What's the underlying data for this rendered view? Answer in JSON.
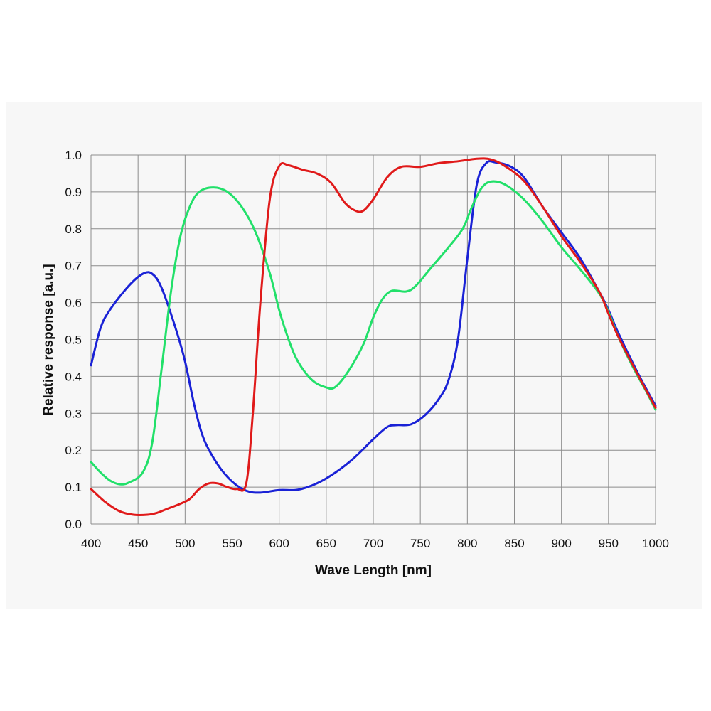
{
  "chart_data": {
    "type": "line",
    "title": "",
    "xlabel": "Wave Length [nm]",
    "ylabel": "Relative response  [a.u.]",
    "xlim": [
      400,
      1000
    ],
    "ylim": [
      0.0,
      1.0
    ],
    "grid": true,
    "legend": "none",
    "xticks": [
      400,
      450,
      500,
      550,
      600,
      650,
      700,
      750,
      800,
      850,
      900,
      950,
      1000
    ],
    "xtick_labels": [
      "400",
      "450",
      "500",
      "550",
      "600",
      "650",
      "700",
      "750",
      "800",
      "850",
      "900",
      "950",
      "1000"
    ],
    "yticks": [
      0.0,
      0.1,
      0.2,
      0.3,
      0.4,
      0.5,
      0.6,
      0.7,
      0.8,
      0.9,
      1.0
    ],
    "ytick_labels": [
      "0.0",
      "0.1",
      "0.2",
      "0.3",
      "0.4",
      "0.5",
      "0.6",
      "0.7",
      "0.8",
      "0.9",
      "1.0"
    ],
    "series": [
      {
        "color": "#1a22d6",
        "points": [
          [
            400,
            0.43
          ],
          [
            410,
            0.53
          ],
          [
            420,
            0.58
          ],
          [
            440,
            0.645
          ],
          [
            455,
            0.678
          ],
          [
            465,
            0.678
          ],
          [
            475,
            0.64
          ],
          [
            490,
            0.53
          ],
          [
            500,
            0.44
          ],
          [
            510,
            0.32
          ],
          [
            520,
            0.23
          ],
          [
            535,
            0.16
          ],
          [
            550,
            0.115
          ],
          [
            565,
            0.09
          ],
          [
            580,
            0.085
          ],
          [
            600,
            0.092
          ],
          [
            620,
            0.093
          ],
          [
            640,
            0.11
          ],
          [
            660,
            0.14
          ],
          [
            680,
            0.18
          ],
          [
            700,
            0.23
          ],
          [
            715,
            0.263
          ],
          [
            725,
            0.268
          ],
          [
            740,
            0.27
          ],
          [
            755,
            0.295
          ],
          [
            770,
            0.34
          ],
          [
            780,
            0.39
          ],
          [
            790,
            0.5
          ],
          [
            800,
            0.72
          ],
          [
            810,
            0.92
          ],
          [
            820,
            0.978
          ],
          [
            830,
            0.98
          ],
          [
            845,
            0.97
          ],
          [
            860,
            0.94
          ],
          [
            880,
            0.86
          ],
          [
            900,
            0.79
          ],
          [
            920,
            0.72
          ],
          [
            940,
            0.63
          ],
          [
            950,
            0.58
          ],
          [
            960,
            0.52
          ],
          [
            980,
            0.415
          ],
          [
            1000,
            0.32
          ]
        ]
      },
      {
        "color": "#22e06a",
        "points": [
          [
            400,
            0.168
          ],
          [
            410,
            0.14
          ],
          [
            420,
            0.118
          ],
          [
            430,
            0.108
          ],
          [
            440,
            0.112
          ],
          [
            455,
            0.14
          ],
          [
            465,
            0.22
          ],
          [
            475,
            0.42
          ],
          [
            485,
            0.63
          ],
          [
            495,
            0.78
          ],
          [
            505,
            0.86
          ],
          [
            515,
            0.9
          ],
          [
            530,
            0.912
          ],
          [
            545,
            0.9
          ],
          [
            560,
            0.86
          ],
          [
            575,
            0.79
          ],
          [
            590,
            0.68
          ],
          [
            600,
            0.58
          ],
          [
            610,
            0.5
          ],
          [
            620,
            0.44
          ],
          [
            635,
            0.39
          ],
          [
            650,
            0.37
          ],
          [
            660,
            0.372
          ],
          [
            675,
            0.42
          ],
          [
            690,
            0.49
          ],
          [
            700,
            0.56
          ],
          [
            710,
            0.61
          ],
          [
            720,
            0.632
          ],
          [
            735,
            0.63
          ],
          [
            745,
            0.645
          ],
          [
            760,
            0.69
          ],
          [
            780,
            0.75
          ],
          [
            795,
            0.8
          ],
          [
            805,
            0.86
          ],
          [
            815,
            0.91
          ],
          [
            825,
            0.928
          ],
          [
            840,
            0.92
          ],
          [
            860,
            0.88
          ],
          [
            880,
            0.82
          ],
          [
            900,
            0.75
          ],
          [
            920,
            0.69
          ],
          [
            940,
            0.625
          ],
          [
            950,
            0.575
          ],
          [
            960,
            0.51
          ],
          [
            975,
            0.43
          ],
          [
            990,
            0.36
          ],
          [
            1000,
            0.31
          ]
        ]
      },
      {
        "color": "#e01a1a",
        "points": [
          [
            400,
            0.095
          ],
          [
            415,
            0.06
          ],
          [
            430,
            0.035
          ],
          [
            445,
            0.025
          ],
          [
            460,
            0.025
          ],
          [
            470,
            0.03
          ],
          [
            480,
            0.04
          ],
          [
            495,
            0.055
          ],
          [
            505,
            0.068
          ],
          [
            515,
            0.095
          ],
          [
            525,
            0.11
          ],
          [
            535,
            0.11
          ],
          [
            545,
            0.1
          ],
          [
            555,
            0.095
          ],
          [
            565,
            0.11
          ],
          [
            572,
            0.3
          ],
          [
            580,
            0.6
          ],
          [
            590,
            0.88
          ],
          [
            600,
            0.97
          ],
          [
            610,
            0.972
          ],
          [
            625,
            0.96
          ],
          [
            640,
            0.95
          ],
          [
            655,
            0.925
          ],
          [
            670,
            0.87
          ],
          [
            682,
            0.848
          ],
          [
            690,
            0.85
          ],
          [
            700,
            0.88
          ],
          [
            715,
            0.94
          ],
          [
            730,
            0.968
          ],
          [
            750,
            0.968
          ],
          [
            770,
            0.978
          ],
          [
            790,
            0.983
          ],
          [
            810,
            0.99
          ],
          [
            825,
            0.988
          ],
          [
            840,
            0.97
          ],
          [
            860,
            0.93
          ],
          [
            880,
            0.86
          ],
          [
            900,
            0.78
          ],
          [
            920,
            0.71
          ],
          [
            940,
            0.63
          ],
          [
            950,
            0.57
          ],
          [
            960,
            0.51
          ],
          [
            980,
            0.41
          ],
          [
            1000,
            0.315
          ]
        ]
      }
    ]
  }
}
